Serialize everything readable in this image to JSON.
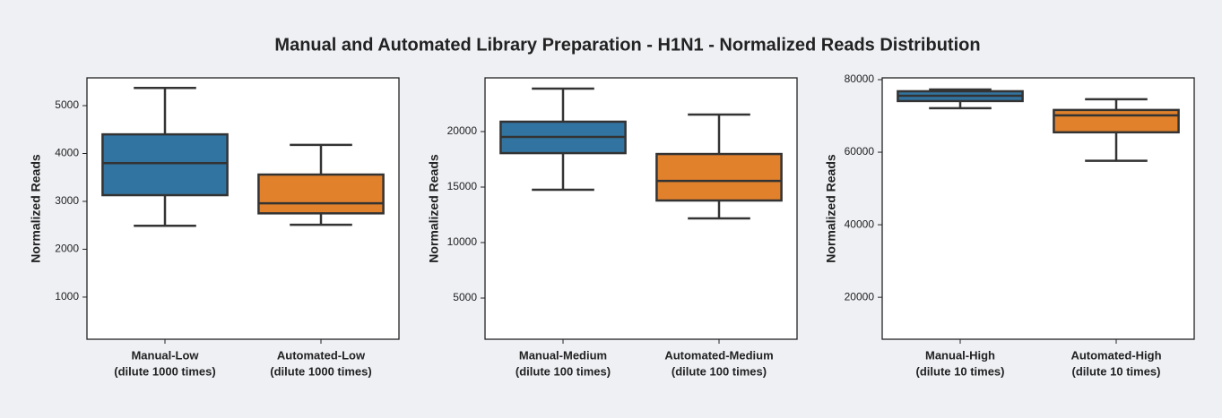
{
  "title": "Manual and Automated Library Preparation - H1N1 - Normalized Reads Distribution",
  "chart_data": [
    {
      "type": "box",
      "y_label": "Normalized Reads",
      "categories": [
        [
          "Manual-Low",
          "(dilute 1000 times)"
        ],
        [
          "Automated-Low",
          "(dilute 1000 times)"
        ]
      ],
      "boxes": [
        {
          "min": 2490,
          "q1": 3130,
          "median": 3800,
          "q3": 4400,
          "max": 5370,
          "color": "#3274a1"
        },
        {
          "min": 2510,
          "q1": 2750,
          "median": 2960,
          "q3": 3560,
          "max": 4180,
          "color": "#e1812c"
        }
      ],
      "ylim": [
        120,
        5580
      ],
      "yticks": [
        1000,
        2000,
        3000,
        4000,
        5000
      ]
    },
    {
      "type": "box",
      "y_label": "Normalized Reads",
      "categories": [
        [
          "Manual-Medium",
          "(dilute 100 times)"
        ],
        [
          "Automated-Medium",
          "(dilute 100 times)"
        ]
      ],
      "boxes": [
        {
          "min": 14760,
          "q1": 18060,
          "median": 19520,
          "q3": 20890,
          "max": 23870,
          "color": "#3274a1"
        },
        {
          "min": 12180,
          "q1": 13790,
          "median": 15560,
          "q3": 17980,
          "max": 21530,
          "color": "#e1812c"
        }
      ],
      "ylim": [
        1290,
        24840
      ],
      "yticks": [
        5000,
        10000,
        15000,
        20000
      ]
    },
    {
      "type": "box",
      "y_label": "Normalized Reads",
      "categories": [
        [
          "Manual-High",
          "(dilute 10 times)"
        ],
        [
          "Automated-High",
          "(dilute 10 times)"
        ]
      ],
      "boxes": [
        {
          "min": 72130,
          "q1": 74100,
          "median": 75570,
          "q3": 76800,
          "max": 77290,
          "color": "#3274a1"
        },
        {
          "min": 57620,
          "q1": 65490,
          "median": 70160,
          "q3": 71640,
          "max": 74590,
          "color": "#e1812c"
        }
      ],
      "ylim": [
        8440,
        80490
      ],
      "yticks": [
        20000,
        40000,
        60000,
        80000
      ]
    }
  ]
}
